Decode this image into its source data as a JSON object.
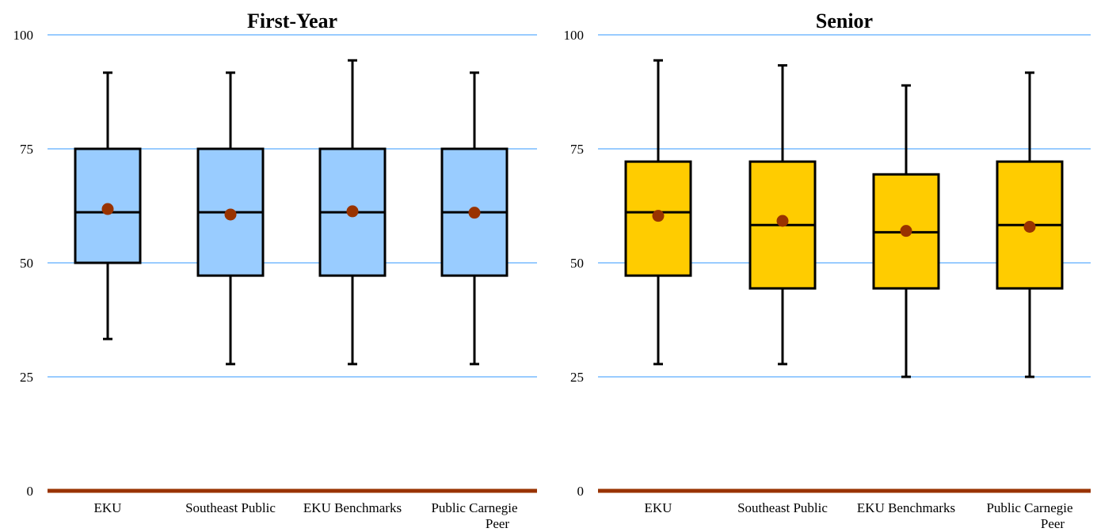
{
  "chart_data": [
    {
      "type": "box",
      "title": "First-Year",
      "ylim": [
        0,
        100
      ],
      "yticks": [
        "0",
        "25",
        "50",
        "75",
        "100"
      ],
      "categories": [
        "EKU",
        "Southeast Public",
        "EKU Benchmarks",
        [
          "Public Carnegie",
          "Peer"
        ]
      ],
      "box_color": "#99ccff",
      "mean_color": "#993300",
      "grid_color": "#99ccff",
      "baseline_color": "#993300",
      "boxes": [
        {
          "min": 33.3,
          "q1": 50.0,
          "median": 61.1,
          "q3": 75.0,
          "max": 91.7,
          "mean": 61.8
        },
        {
          "min": 27.8,
          "q1": 47.2,
          "median": 61.1,
          "q3": 75.0,
          "max": 91.7,
          "mean": 60.6
        },
        {
          "min": 27.8,
          "q1": 47.2,
          "median": 61.1,
          "q3": 75.0,
          "max": 94.4,
          "mean": 61.3
        },
        {
          "min": 27.8,
          "q1": 47.2,
          "median": 61.1,
          "q3": 75.0,
          "max": 91.7,
          "mean": 61.0
        }
      ]
    },
    {
      "type": "box",
      "title": "Senior",
      "ylim": [
        0,
        100
      ],
      "yticks": [
        "0",
        "25",
        "50",
        "75",
        "100"
      ],
      "categories": [
        "EKU",
        "Southeast Public",
        "EKU Benchmarks",
        [
          "Public Carnegie",
          "Peer"
        ]
      ],
      "box_color": "#ffcc00",
      "mean_color": "#993300",
      "grid_color": "#99ccff",
      "baseline_color": "#993300",
      "boxes": [
        {
          "min": 27.8,
          "q1": 47.2,
          "median": 61.1,
          "q3": 72.2,
          "max": 94.4,
          "mean": 60.3
        },
        {
          "min": 27.8,
          "q1": 44.4,
          "median": 58.3,
          "q3": 72.2,
          "max": 93.3,
          "mean": 59.2
        },
        {
          "min": 25.0,
          "q1": 44.4,
          "median": 56.7,
          "q3": 69.4,
          "max": 88.9,
          "mean": 57.0
        },
        {
          "min": 25.0,
          "q1": 44.4,
          "median": 58.3,
          "q3": 72.2,
          "max": 91.7,
          "mean": 57.9
        }
      ]
    }
  ]
}
